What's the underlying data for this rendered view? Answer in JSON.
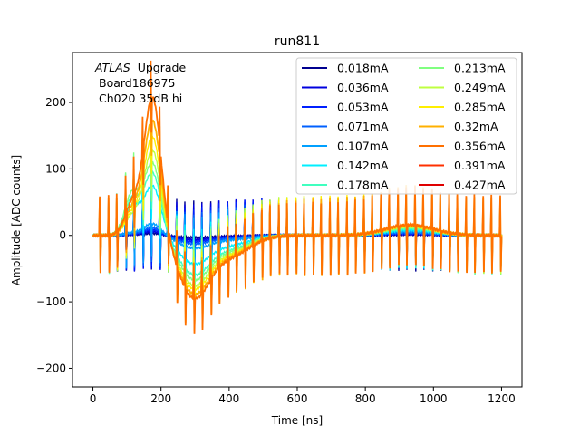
{
  "chart_data": {
    "type": "line",
    "title": "run811",
    "xlabel": "Time [ns]",
    "ylabel": "Amplitude [ADC counts]",
    "xlim": [
      -60,
      1260
    ],
    "ylim": [
      -228,
      275
    ],
    "xticks": [
      0,
      200,
      400,
      600,
      800,
      1000,
      1200
    ],
    "yticks": [
      -200,
      -100,
      0,
      100,
      200
    ],
    "grid": false,
    "legend_position": "top-right",
    "legend_columns": 2,
    "annotation": {
      "line1_italic": "ATLAS",
      "line1_rest": "Upgrade",
      "line2": "Board186975",
      "line3": "Ch020 35dB hi"
    },
    "series": [
      {
        "name": "0.018mA",
        "color": "#00008f",
        "spike": 55,
        "posPeak": 3,
        "negDip": -3,
        "tail": 1
      },
      {
        "name": "0.036mA",
        "color": "#0000df",
        "spike": 55,
        "posPeak": 6,
        "negDip": -6,
        "tail": 2
      },
      {
        "name": "0.053mA",
        "color": "#0020ff",
        "spike": 56,
        "posPeak": 9,
        "negDip": -9,
        "tail": 3
      },
      {
        "name": "0.071mA",
        "color": "#0060ff",
        "spike": 56,
        "posPeak": 12,
        "negDip": -12,
        "tail": 4
      },
      {
        "name": "0.107mA",
        "color": "#00a0ff",
        "spike": 57,
        "posPeak": 18,
        "negDip": -18,
        "tail": 6
      },
      {
        "name": "0.142mA",
        "color": "#00efff",
        "spike": 57,
        "posPeak": 75,
        "negDip": -40,
        "tail": 8
      },
      {
        "name": "0.178mA",
        "color": "#40ffbf",
        "spike": 58,
        "posPeak": 95,
        "negDip": -55,
        "tail": 10
      },
      {
        "name": "0.213mA",
        "color": "#80ff80",
        "spike": 58,
        "posPeak": 110,
        "negDip": -62,
        "tail": 12
      },
      {
        "name": "0.249mA",
        "color": "#bfff40",
        "spike": 59,
        "posPeak": 130,
        "negDip": -70,
        "tail": 13
      },
      {
        "name": "0.285mA",
        "color": "#ffef00",
        "spike": 59,
        "posPeak": 150,
        "negDip": -75,
        "tail": 14
      },
      {
        "name": "0.32mA",
        "color": "#ffb000",
        "spike": 60,
        "posPeak": 175,
        "negDip": -82,
        "tail": 15
      },
      {
        "name": "0.356mA",
        "color": "#ff7000",
        "spike": 60,
        "posPeak": 210,
        "negDip": -88,
        "tail": 16
      },
      {
        "name": "0.391mA",
        "color": "#ff3000",
        "spike": 0,
        "posPeak": 0,
        "negDip": 0,
        "tail": 0
      },
      {
        "name": "0.427mA",
        "color": "#df0000",
        "spike": 0,
        "posPeak": 0,
        "negDip": 0,
        "tail": 0
      }
    ]
  }
}
